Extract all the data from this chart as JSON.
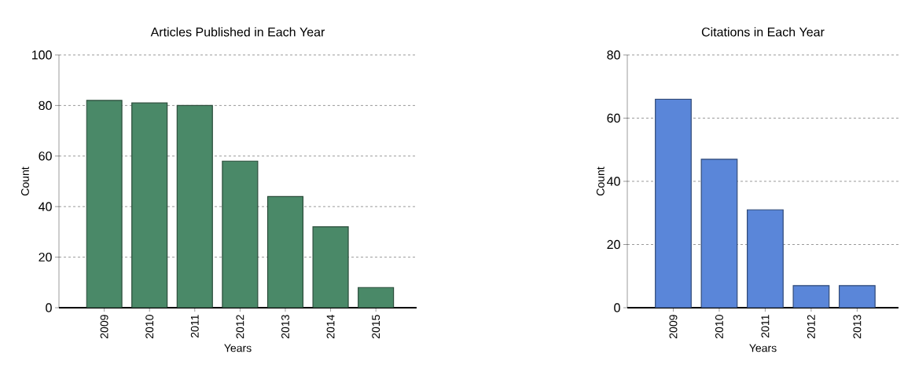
{
  "chart_data": [
    {
      "type": "bar",
      "title": "Articles Published in Each Year",
      "xlabel": "Years",
      "ylabel": "Count",
      "categories": [
        "2009",
        "2010",
        "2011",
        "2012",
        "2013",
        "2014",
        "2015"
      ],
      "values": [
        82,
        81,
        80,
        58,
        44,
        32,
        8
      ],
      "color": "#4a8968",
      "ylim": [
        0,
        100
      ],
      "yticks": [
        0,
        20,
        40,
        60,
        80,
        100
      ],
      "grid": "y"
    },
    {
      "type": "bar",
      "title": "Citations in Each Year",
      "xlabel": "Years",
      "ylabel": "Count",
      "categories": [
        "2009",
        "2010",
        "2011",
        "2012",
        "2013"
      ],
      "values": [
        66,
        47,
        31,
        7,
        7
      ],
      "color": "#5a86d9",
      "ylim": [
        0,
        80
      ],
      "yticks": [
        0,
        20,
        40,
        60,
        80
      ],
      "grid": "y"
    }
  ]
}
